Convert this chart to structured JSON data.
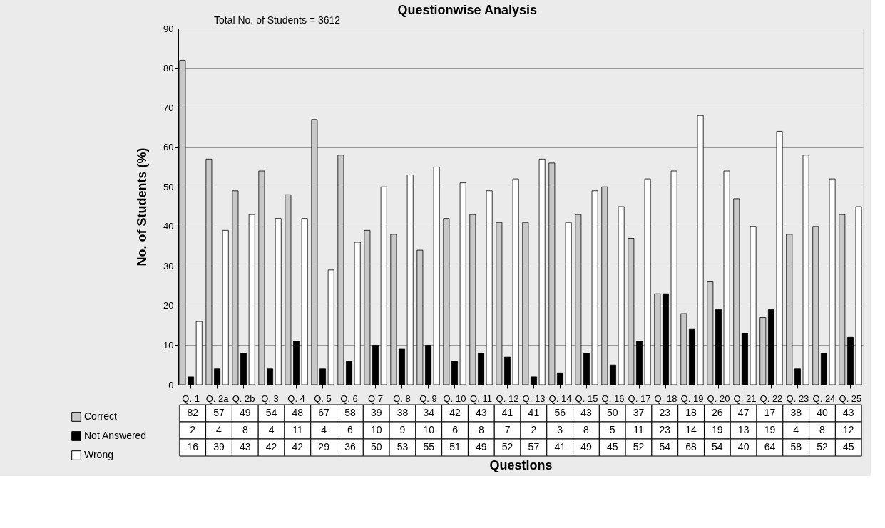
{
  "chart_data": {
    "type": "bar",
    "title": "Questionwise Analysis",
    "xlabel": "Questions",
    "ylabel": "No. of Students (%)",
    "annotations": [
      "Total No. of Students = 3612"
    ],
    "categories": [
      "Q. 1",
      "Q. 2a",
      "Q. 2b",
      "Q. 3",
      "Q. 4",
      "Q. 5",
      "Q. 6",
      "Q 7",
      "Q. 8",
      "Q. 9",
      "Q. 10",
      "Q. 11",
      "Q. 12",
      "Q. 13",
      "Q. 14",
      "Q. 15",
      "Q. 16",
      "Q. 17",
      "Q. 18",
      "Q. 19",
      "Q. 20",
      "Q. 21",
      "Q. 22",
      "Q. 23",
      "Q. 24",
      "Q. 25"
    ],
    "series": [
      {
        "name": "Correct",
        "color": "#c8c8c8",
        "values": [
          82,
          57,
          49,
          54,
          48,
          67,
          58,
          39,
          38,
          34,
          42,
          43,
          41,
          41,
          56,
          43,
          50,
          37,
          23,
          18,
          26,
          47,
          17,
          38,
          40,
          43
        ]
      },
      {
        "name": "Not Answered",
        "color": "#000000",
        "values": [
          2,
          4,
          8,
          4,
          11,
          4,
          6,
          10,
          9,
          10,
          6,
          8,
          7,
          2,
          3,
          8,
          5,
          11,
          23,
          14,
          19,
          13,
          19,
          4,
          8,
          12
        ]
      },
      {
        "name": "Wrong",
        "color": "#ffffff",
        "values": [
          16,
          39,
          43,
          42,
          42,
          29,
          36,
          50,
          53,
          55,
          51,
          49,
          52,
          57,
          41,
          49,
          45,
          52,
          54,
          68,
          54,
          40,
          64,
          58,
          52,
          45
        ]
      }
    ],
    "ylim": [
      0,
      90
    ],
    "yticks": [
      0,
      10,
      20,
      30,
      40,
      50,
      60,
      70,
      80,
      90
    ],
    "grid": "y",
    "legend": "bottom left",
    "data_labels": true
  }
}
